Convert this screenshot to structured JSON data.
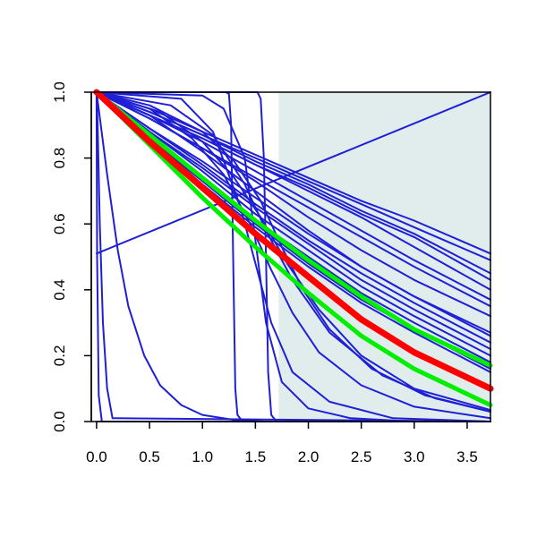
{
  "chart_data": {
    "type": "line",
    "title": "",
    "xlabel": "",
    "ylabel": "",
    "xlim": [
      -0.05,
      3.72
    ],
    "ylim": [
      0.0,
      1.0
    ],
    "x_ticks": [
      0.0,
      0.5,
      1.0,
      1.5,
      2.0,
      2.5,
      3.0,
      3.5
    ],
    "x_tick_labels": [
      "0.0",
      "0.5",
      "1.0",
      "1.5",
      "2.0",
      "2.5",
      "3.0",
      "3.5"
    ],
    "y_ticks": [
      0.0,
      0.2,
      0.4,
      0.6,
      0.8,
      1.0
    ],
    "y_tick_labels": [
      "0.0",
      "0.2",
      "0.4",
      "0.6",
      "0.8",
      "1.0"
    ],
    "grid": false,
    "legend": "none",
    "shaded_region": {
      "x_from": 1.72,
      "x_to": 3.72,
      "color": "#e1eced"
    },
    "colors": {
      "blue": "#1f1fd6",
      "red": "#ff0000",
      "green": "#00ee00",
      "axis": "#000000"
    },
    "series": [
      {
        "color": "blue",
        "points": [
          [
            0.0,
            1.0
          ],
          [
            0.0,
            0.97
          ],
          [
            0.005,
            0.5
          ],
          [
            0.02,
            0.08
          ],
          [
            0.05,
            0.0
          ],
          [
            3.72,
            0.0
          ]
        ]
      },
      {
        "color": "blue",
        "points": [
          [
            0.0,
            1.0
          ],
          [
            0.01,
            0.9
          ],
          [
            0.03,
            0.6
          ],
          [
            0.06,
            0.3
          ],
          [
            0.1,
            0.1
          ],
          [
            0.15,
            0.01
          ],
          [
            3.72,
            0.0
          ]
        ]
      },
      {
        "color": "blue",
        "points": [
          [
            0.0,
            1.0
          ],
          [
            0.1,
            0.75
          ],
          [
            0.2,
            0.52
          ],
          [
            0.3,
            0.35
          ],
          [
            0.45,
            0.2
          ],
          [
            0.6,
            0.11
          ],
          [
            0.8,
            0.05
          ],
          [
            1.0,
            0.02
          ],
          [
            1.3,
            0.005
          ],
          [
            1.6,
            0.0
          ],
          [
            3.72,
            0.0
          ]
        ]
      },
      {
        "color": "blue",
        "points": [
          [
            0.0,
            0.51
          ],
          [
            3.72,
            1.0
          ]
        ]
      },
      {
        "color": "blue",
        "points": [
          [
            0.0,
            1.0
          ],
          [
            1.22,
            1.0
          ],
          [
            1.25,
            0.995
          ],
          [
            1.27,
            0.9
          ],
          [
            1.29,
            0.5
          ],
          [
            1.31,
            0.1
          ],
          [
            1.33,
            0.02
          ],
          [
            1.38,
            0.0
          ],
          [
            3.72,
            0.0
          ]
        ]
      },
      {
        "color": "blue",
        "points": [
          [
            0.0,
            1.0
          ],
          [
            1.52,
            1.0
          ],
          [
            1.55,
            0.98
          ],
          [
            1.58,
            0.8
          ],
          [
            1.6,
            0.5
          ],
          [
            1.62,
            0.15
          ],
          [
            1.65,
            0.02
          ],
          [
            1.7,
            0.0
          ],
          [
            3.72,
            0.0
          ]
        ]
      },
      {
        "color": "blue",
        "points": [
          [
            0.0,
            1.0
          ],
          [
            1.0,
            0.99
          ],
          [
            1.2,
            0.95
          ],
          [
            1.4,
            0.8
          ],
          [
            1.5,
            0.55
          ],
          [
            1.6,
            0.3
          ],
          [
            1.75,
            0.12
          ],
          [
            2.0,
            0.04
          ],
          [
            2.4,
            0.01
          ],
          [
            3.0,
            0.0
          ],
          [
            3.72,
            0.0
          ]
        ]
      },
      {
        "color": "blue",
        "points": [
          [
            0.0,
            1.0
          ],
          [
            0.8,
            0.98
          ],
          [
            1.1,
            0.88
          ],
          [
            1.35,
            0.66
          ],
          [
            1.5,
            0.48
          ],
          [
            1.65,
            0.3
          ],
          [
            1.85,
            0.15
          ],
          [
            2.2,
            0.06
          ],
          [
            2.8,
            0.01
          ],
          [
            3.72,
            0.0
          ]
        ]
      },
      {
        "color": "blue",
        "points": [
          [
            0.0,
            1.0
          ],
          [
            0.5,
            0.95
          ],
          [
            0.9,
            0.86
          ],
          [
            1.2,
            0.75
          ],
          [
            1.45,
            0.6
          ],
          [
            1.65,
            0.46
          ],
          [
            1.85,
            0.33
          ],
          [
            2.1,
            0.21
          ],
          [
            2.5,
            0.11
          ],
          [
            3.0,
            0.045
          ],
          [
            3.72,
            0.01
          ]
        ]
      },
      {
        "color": "blue",
        "points": [
          [
            0.0,
            1.0
          ],
          [
            0.5,
            0.96
          ],
          [
            1.0,
            0.88
          ],
          [
            1.3,
            0.79
          ],
          [
            1.55,
            0.67
          ],
          [
            1.75,
            0.53
          ],
          [
            1.95,
            0.4
          ],
          [
            2.2,
            0.28
          ],
          [
            2.6,
            0.16
          ],
          [
            3.1,
            0.08
          ],
          [
            3.72,
            0.03
          ]
        ]
      },
      {
        "color": "blue",
        "points": [
          [
            0.0,
            1.0
          ],
          [
            0.6,
            0.94
          ],
          [
            1.0,
            0.85
          ],
          [
            1.3,
            0.74
          ],
          [
            1.55,
            0.62
          ],
          [
            1.8,
            0.48
          ],
          [
            2.1,
            0.34
          ],
          [
            2.5,
            0.2
          ],
          [
            3.0,
            0.1
          ],
          [
            3.72,
            0.035
          ]
        ]
      },
      {
        "color": "blue",
        "points": [
          [
            0.0,
            1.0
          ],
          [
            0.7,
            0.96
          ],
          [
            1.1,
            0.87
          ],
          [
            1.4,
            0.72
          ],
          [
            1.6,
            0.58
          ],
          [
            1.85,
            0.43
          ],
          [
            2.2,
            0.27
          ],
          [
            2.7,
            0.14
          ],
          [
            3.2,
            0.07
          ],
          [
            3.72,
            0.03
          ]
        ]
      },
      {
        "color": "blue",
        "points": [
          [
            0.0,
            1.0
          ],
          [
            0.5,
            0.93
          ],
          [
            1.0,
            0.82
          ],
          [
            1.5,
            0.7
          ],
          [
            2.0,
            0.58
          ],
          [
            2.5,
            0.47
          ],
          [
            3.0,
            0.38
          ],
          [
            3.72,
            0.26
          ]
        ]
      },
      {
        "color": "blue",
        "points": [
          [
            0.0,
            1.0
          ],
          [
            0.5,
            0.92
          ],
          [
            1.0,
            0.83
          ],
          [
            1.5,
            0.73
          ],
          [
            2.0,
            0.62
          ],
          [
            2.5,
            0.52
          ],
          [
            3.0,
            0.43
          ],
          [
            3.72,
            0.32
          ]
        ]
      },
      {
        "color": "blue",
        "points": [
          [
            0.0,
            1.0
          ],
          [
            0.5,
            0.92
          ],
          [
            1.0,
            0.83
          ],
          [
            1.5,
            0.74
          ],
          [
            2.0,
            0.65
          ],
          [
            2.5,
            0.56
          ],
          [
            3.0,
            0.47
          ],
          [
            3.72,
            0.35
          ]
        ]
      },
      {
        "color": "blue",
        "points": [
          [
            0.0,
            1.0
          ],
          [
            0.5,
            0.93
          ],
          [
            1.0,
            0.85
          ],
          [
            1.5,
            0.76
          ],
          [
            2.0,
            0.67
          ],
          [
            2.5,
            0.58
          ],
          [
            3.0,
            0.49
          ],
          [
            3.72,
            0.37
          ]
        ]
      },
      {
        "color": "blue",
        "points": [
          [
            0.0,
            1.0
          ],
          [
            0.5,
            0.93
          ],
          [
            1.0,
            0.86
          ],
          [
            1.5,
            0.78
          ],
          [
            2.0,
            0.7
          ],
          [
            2.5,
            0.62
          ],
          [
            3.0,
            0.53
          ],
          [
            3.72,
            0.4
          ]
        ]
      },
      {
        "color": "blue",
        "points": [
          [
            0.0,
            1.0
          ],
          [
            0.5,
            0.93
          ],
          [
            1.0,
            0.86
          ],
          [
            1.5,
            0.78
          ],
          [
            2.0,
            0.71
          ],
          [
            2.5,
            0.63
          ],
          [
            3.0,
            0.56
          ],
          [
            3.72,
            0.43
          ]
        ]
      },
      {
        "color": "blue",
        "points": [
          [
            0.0,
            1.0
          ],
          [
            0.5,
            0.94
          ],
          [
            1.0,
            0.87
          ],
          [
            1.5,
            0.79
          ],
          [
            2.0,
            0.72
          ],
          [
            2.5,
            0.64
          ],
          [
            3.0,
            0.57
          ],
          [
            3.72,
            0.45
          ]
        ]
      },
      {
        "color": "blue",
        "points": [
          [
            0.0,
            1.0
          ],
          [
            0.5,
            0.94
          ],
          [
            1.0,
            0.87
          ],
          [
            1.5,
            0.8
          ],
          [
            2.0,
            0.73
          ],
          [
            2.5,
            0.66
          ],
          [
            3.0,
            0.59
          ],
          [
            3.72,
            0.49
          ]
        ]
      },
      {
        "color": "blue",
        "points": [
          [
            0.0,
            1.0
          ],
          [
            0.5,
            0.95
          ],
          [
            1.0,
            0.88
          ],
          [
            1.5,
            0.81
          ],
          [
            2.0,
            0.74
          ],
          [
            2.5,
            0.67
          ],
          [
            3.0,
            0.61
          ],
          [
            3.72,
            0.51
          ]
        ]
      },
      {
        "color": "blue",
        "points": [
          [
            0.0,
            1.0
          ],
          [
            0.5,
            0.87
          ],
          [
            1.0,
            0.74
          ],
          [
            1.5,
            0.61
          ],
          [
            2.0,
            0.5
          ],
          [
            2.5,
            0.39
          ],
          [
            3.0,
            0.3
          ],
          [
            3.72,
            0.18
          ]
        ]
      },
      {
        "color": "blue",
        "points": [
          [
            0.0,
            1.0
          ],
          [
            0.5,
            0.88
          ],
          [
            1.0,
            0.76
          ],
          [
            1.5,
            0.63
          ],
          [
            2.0,
            0.52
          ],
          [
            2.5,
            0.41
          ],
          [
            3.0,
            0.32
          ],
          [
            3.72,
            0.2
          ]
        ]
      },
      {
        "color": "blue",
        "points": [
          [
            0.0,
            1.0
          ],
          [
            0.5,
            0.88
          ],
          [
            1.0,
            0.77
          ],
          [
            1.5,
            0.65
          ],
          [
            2.0,
            0.54
          ],
          [
            2.5,
            0.43
          ],
          [
            3.0,
            0.34
          ],
          [
            3.72,
            0.22
          ]
        ]
      },
      {
        "color": "blue",
        "points": [
          [
            0.0,
            1.0
          ],
          [
            0.5,
            0.89
          ],
          [
            1.0,
            0.78
          ],
          [
            1.5,
            0.66
          ],
          [
            2.0,
            0.55
          ],
          [
            2.5,
            0.45
          ],
          [
            3.0,
            0.36
          ],
          [
            3.72,
            0.24
          ]
        ]
      },
      {
        "color": "blue",
        "points": [
          [
            0.0,
            1.0
          ],
          [
            0.5,
            0.89
          ],
          [
            1.0,
            0.79
          ],
          [
            1.5,
            0.68
          ],
          [
            2.0,
            0.57
          ],
          [
            2.5,
            0.47
          ],
          [
            3.0,
            0.38
          ],
          [
            3.72,
            0.27
          ]
        ]
      },
      {
        "color": "blue",
        "points": [
          [
            0.0,
            1.0
          ],
          [
            0.5,
            0.86
          ],
          [
            1.0,
            0.72
          ],
          [
            1.5,
            0.59
          ],
          [
            2.0,
            0.47
          ],
          [
            2.5,
            0.36
          ],
          [
            3.0,
            0.27
          ],
          [
            3.72,
            0.15
          ]
        ]
      },
      {
        "color": "blue",
        "points": [
          [
            0.0,
            1.0
          ],
          [
            0.5,
            0.86
          ],
          [
            1.0,
            0.73
          ],
          [
            1.5,
            0.6
          ],
          [
            2.0,
            0.48
          ],
          [
            2.5,
            0.37
          ],
          [
            3.0,
            0.28
          ],
          [
            3.72,
            0.16
          ]
        ]
      },
      {
        "color": "green",
        "width": 5,
        "points": [
          [
            0.0,
            1.0
          ],
          [
            0.5,
            0.84
          ],
          [
            1.0,
            0.68
          ],
          [
            1.5,
            0.53
          ],
          [
            2.0,
            0.39
          ],
          [
            2.5,
            0.26
          ],
          [
            3.0,
            0.16
          ],
          [
            3.72,
            0.05
          ]
        ]
      },
      {
        "color": "green",
        "width": 5,
        "points": [
          [
            0.0,
            1.0
          ],
          [
            0.5,
            0.87
          ],
          [
            1.0,
            0.74
          ],
          [
            1.5,
            0.61
          ],
          [
            2.0,
            0.49
          ],
          [
            2.5,
            0.38
          ],
          [
            3.0,
            0.28
          ],
          [
            3.72,
            0.17
          ]
        ]
      },
      {
        "color": "red",
        "width": 7,
        "points": [
          [
            0.0,
            1.0
          ],
          [
            0.5,
            0.85
          ],
          [
            1.0,
            0.71
          ],
          [
            1.5,
            0.57
          ],
          [
            2.0,
            0.44
          ],
          [
            2.5,
            0.31
          ],
          [
            3.0,
            0.21
          ],
          [
            3.72,
            0.1
          ]
        ]
      }
    ]
  }
}
